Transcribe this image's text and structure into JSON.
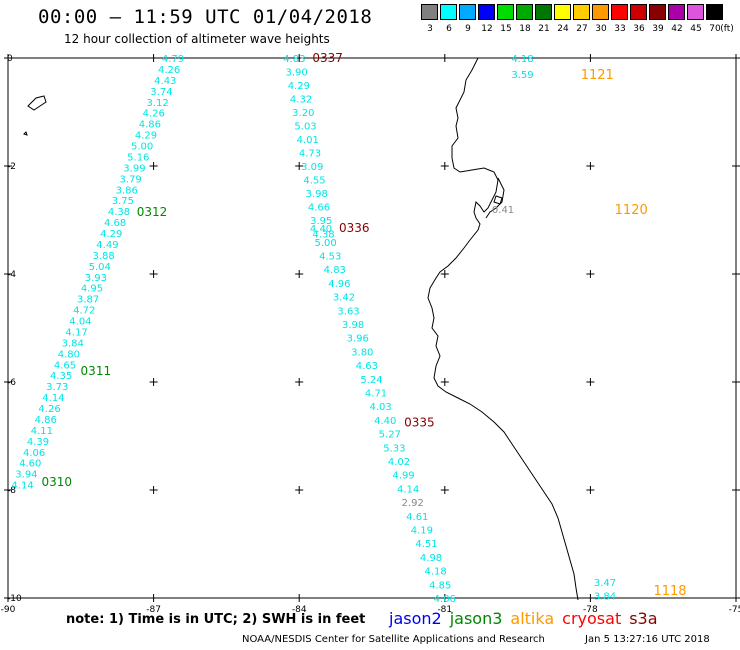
{
  "header": {
    "title": "00:00 – 11:59 UTC 01/04/2018",
    "subtitle": "12 hour collection of altimeter wave heights"
  },
  "legend": {
    "unit": "(ft)",
    "bins": [
      {
        "label": "3",
        "color": "#808080"
      },
      {
        "label": "6",
        "color": "#00ffff"
      },
      {
        "label": "9",
        "color": "#00aaff"
      },
      {
        "label": "12",
        "color": "#0000ff"
      },
      {
        "label": "15",
        "color": "#00dd00"
      },
      {
        "label": "18",
        "color": "#00aa00"
      },
      {
        "label": "21",
        "color": "#007700"
      },
      {
        "label": "24",
        "color": "#ffff00"
      },
      {
        "label": "27",
        "color": "#ffcc00"
      },
      {
        "label": "30",
        "color": "#ff9900"
      },
      {
        "label": "33",
        "color": "#ff0000"
      },
      {
        "label": "36",
        "color": "#cc0000"
      },
      {
        "label": "39",
        "color": "#880000"
      },
      {
        "label": "42",
        "color": "#aa00aa"
      },
      {
        "label": "45",
        "color": "#dd55dd"
      },
      {
        "label": "70",
        "color": "#000000"
      }
    ]
  },
  "map": {
    "lon_ticks": [
      "-90",
      "-87",
      "-84",
      "-81",
      "-78",
      "-75"
    ],
    "lat_ticks": [
      "0",
      "-2",
      "-4",
      "-6",
      "-8",
      "-10"
    ],
    "lon_range": [
      -90,
      -75
    ],
    "lat_range": [
      -10,
      0
    ],
    "track_color": "#00e5e5",
    "low_color": "#888888",
    "tracks": [
      {
        "id": "pass_0310_0312",
        "start": [
          -86.6,
          0
        ],
        "end": [
          -89.7,
          -7.9
        ],
        "values": [
          "4.79",
          "4.26",
          "4.43",
          "3.74",
          "3.12",
          "4.26",
          "4.86",
          "4.29",
          "5.00",
          "5.16",
          "3.99",
          "3.79",
          "3.86",
          "3.75",
          "4.38",
          "4.68",
          "4.29",
          "4.49",
          "3.88",
          "5.04",
          "3.93",
          "4.95",
          "3.87",
          "4.72",
          "4.04",
          "4.17",
          "3.84",
          "4.80",
          "4.65",
          "4.35",
          "3.73",
          "4.14",
          "4.26",
          "4.86",
          "4.11",
          "4.39",
          "4.06",
          "4.60",
          "3.94",
          "4.14"
        ],
        "times": [
          {
            "label": "0312",
            "lat": -2.85,
            "color": "#008800"
          },
          {
            "label": "0311",
            "lat": -5.8,
            "color": "#008800"
          },
          {
            "label": "0310",
            "lat": -7.85,
            "color": "#008800"
          }
        ]
      },
      {
        "id": "pass_0335_0337_a",
        "start": [
          -84.1,
          0
        ],
        "end": [
          -83.5,
          -3.25
        ],
        "values": [
          "4.83",
          "3.90",
          "4.29",
          "4.32",
          "3.20",
          "5.03",
          "4.01",
          "4.73",
          "3.09",
          "4.55",
          "3.98",
          "4.66",
          "3.95",
          "4.38"
        ],
        "times": [
          {
            "label": "0337",
            "lat": 0,
            "color": "#880000"
          }
        ]
      },
      {
        "id": "pass_0335_0337_b",
        "start": [
          -83.55,
          -3.15
        ],
        "end": [
          -81.0,
          -10.0
        ],
        "values": [
          "4.40",
          "5.00",
          "4.53",
          "4.83",
          "4.96",
          "3.42",
          "3.63",
          "3.98",
          "3.96",
          "3.80",
          "4.63",
          "5.24",
          "4.71",
          "4.03",
          "4.40",
          "5.27",
          "5.33",
          "4.02",
          "4.99",
          "4.14",
          "2.92",
          "4.61",
          "4.19",
          "4.51",
          "4.98",
          "4.18",
          "4.85",
          "4.06"
        ],
        "times": [
          {
            "label": "0336",
            "lat": -3.15,
            "color": "#880000"
          },
          {
            "label": "0335",
            "lat": -6.75,
            "color": "#880000"
          }
        ]
      }
    ],
    "point_labels": [
      {
        "value": "4.18",
        "lon": -79.4,
        "lat": 0,
        "color": "#00e5e5"
      },
      {
        "value": "3.59",
        "lon": -79.4,
        "lat": -0.3,
        "color": "#00e5e5"
      },
      {
        "value": "0.41",
        "lon": -79.8,
        "lat": -2.8,
        "color": "#888888"
      },
      {
        "value": "3.47",
        "lon": -77.7,
        "lat": -9.7,
        "color": "#00e5e5"
      },
      {
        "value": "3.84",
        "lon": -77.7,
        "lat": -9.95,
        "color": "#00e5e5"
      }
    ],
    "pass_times": [
      {
        "label": "1121",
        "lon": -78.2,
        "lat": -0.3,
        "color": "#ff9900"
      },
      {
        "label": "1120",
        "lon": -77.5,
        "lat": -2.8,
        "color": "#ff9900"
      },
      {
        "label": "1118",
        "lon": -76.7,
        "lat": -9.85,
        "color": "#ff9900"
      }
    ]
  },
  "footer": {
    "note": "note:  1) Time is in UTC;  2) SWH is in feet",
    "missions": [
      {
        "name": "jason2",
        "color": "#0000ee"
      },
      {
        "name": "jason3",
        "color": "#008800"
      },
      {
        "name": "altika",
        "color": "#ff9900"
      },
      {
        "name": "cryosat",
        "color": "#ff0000"
      },
      {
        "name": "s3a",
        "color": "#880000"
      }
    ],
    "credit": "NOAA/NESDIS Center for Satellite Applications and Research",
    "timestamp": "Jan  5 13:27:16 UTC 2018"
  }
}
